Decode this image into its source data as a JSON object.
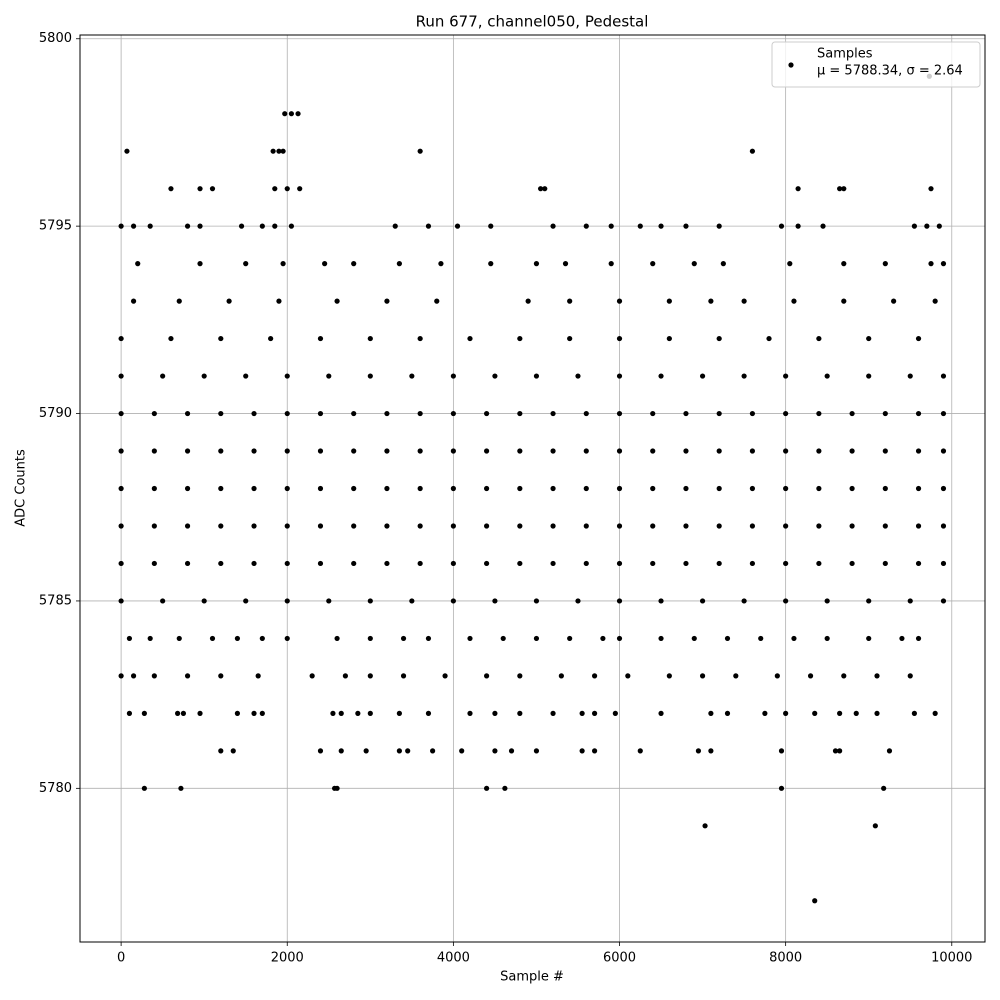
{
  "chart_data": {
    "type": "scatter",
    "title": "Run 677, channel050, Pedestal",
    "x_label": "Sample #",
    "y_label": "ADC Counts",
    "xlim": [
      -495,
      10400
    ],
    "ylim": [
      5775.9,
      5800.1
    ],
    "xticks": [
      0,
      2000,
      4000,
      6000,
      8000,
      10000
    ],
    "yticks": [
      5780,
      5785,
      5790,
      5795,
      5800
    ],
    "grid": true,
    "legend": "upper right",
    "annotation": "μ = 5788.34, σ = 2.64",
    "series": [
      {
        "name": "Samples",
        "color": "#000000",
        "x": [
          0,
          400,
          800,
          1200,
          1600,
          2000,
          2400,
          2800,
          3200,
          3600,
          4000,
          4400,
          4800,
          5200,
          5600,
          6000,
          6400,
          6800,
          7200,
          7600,
          8000,
          8400,
          8800,
          9200,
          9600,
          9900,
          0,
          400,
          800,
          1200,
          1600,
          2000,
          2400,
          2800,
          3200,
          3600,
          4000,
          4400,
          4800,
          5200,
          5600,
          6000,
          6400,
          6800,
          7200,
          7600,
          8000,
          8400,
          8800,
          9200,
          9600,
          9900,
          0,
          400,
          800,
          1200,
          1600,
          2000,
          2400,
          2800,
          3200,
          3600,
          4000,
          4400,
          4800,
          5200,
          5600,
          6000,
          6400,
          6800,
          7200,
          7600,
          8000,
          8400,
          8800,
          9200,
          9600,
          9900,
          0,
          400,
          800,
          1200,
          1600,
          2000,
          2400,
          2800,
          3200,
          3600,
          4000,
          4400,
          4800,
          5200,
          5600,
          6000,
          6400,
          6800,
          7200,
          7600,
          8000,
          8400,
          8800,
          9200,
          9600,
          9900,
          0,
          400,
          800,
          1200,
          1600,
          2000,
          2400,
          2800,
          3200,
          3600,
          4000,
          4400,
          4800,
          5200,
          5600,
          6000,
          6400,
          6800,
          7200,
          7600,
          8000,
          8400,
          8800,
          9200,
          9600,
          9900,
          0,
          500,
          1000,
          1500,
          2000,
          2500,
          3000,
          3500,
          4000,
          4500,
          5000,
          5500,
          6000,
          6500,
          7000,
          7500,
          8000,
          8500,
          9000,
          9500,
          9900,
          0,
          500,
          1000,
          1500,
          2000,
          2500,
          3000,
          3500,
          4000,
          4500,
          5000,
          5500,
          6000,
          6500,
          7000,
          7500,
          8000,
          8500,
          9000,
          9500,
          9900,
          0,
          600,
          1200,
          1800,
          2400,
          3000,
          3600,
          4200,
          4800,
          5400,
          6000,
          6600,
          7200,
          7800,
          8400,
          9000,
          9600,
          150,
          700,
          1300,
          1900,
          2600,
          3200,
          3800,
          4900,
          5400,
          6000,
          6600,
          7100,
          7500,
          8100,
          8700,
          9300,
          9800,
          200,
          950,
          1500,
          1950,
          2450,
          2800,
          3350,
          3850,
          4450,
          5000,
          5350,
          5900,
          6400,
          6900,
          7250,
          8050,
          8700,
          9200,
          9750,
          9900,
          0,
          150,
          350,
          800,
          950,
          1450,
          1700,
          1850,
          2050,
          3300,
          3700,
          4050,
          4450,
          5200,
          5600,
          5900,
          6250,
          6500,
          6800,
          7200,
          7950,
          8150,
          8450,
          9550,
          9700,
          9850,
          600,
          950,
          1100,
          1850,
          2000,
          2150,
          5050,
          5100,
          8150,
          8650,
          8700,
          9750,
          70,
          1830,
          1900,
          1950,
          3600,
          7600,
          1970,
          2050,
          2130,
          9730,
          100,
          350,
          700,
          1100,
          1400,
          1700,
          2000,
          2600,
          3000,
          3400,
          3700,
          4200,
          4600,
          5000,
          5400,
          5800,
          6000,
          6500,
          6900,
          7300,
          7700,
          8100,
          8500,
          9000,
          9400,
          9600,
          0,
          150,
          400,
          800,
          1200,
          1650,
          2300,
          2700,
          3000,
          3400,
          3900,
          4400,
          4800,
          5300,
          5700,
          6100,
          6600,
          7000,
          7400,
          7900,
          8300,
          8700,
          9100,
          9500,
          100,
          280,
          680,
          750,
          950,
          1400,
          1600,
          1700,
          2550,
          2650,
          2850,
          3000,
          3350,
          3700,
          4200,
          4500,
          4800,
          5200,
          5550,
          5700,
          5950,
          6500,
          7100,
          7300,
          7750,
          8000,
          8350,
          8650,
          8850,
          9100,
          9550,
          9800,
          1200,
          1350,
          2400,
          2650,
          2950,
          3350,
          3450,
          3750,
          4100,
          4500,
          4700,
          5000,
          5550,
          5700,
          6250,
          6950,
          7100,
          7950,
          8600,
          8650,
          9250,
          280,
          720,
          2570,
          2600,
          4400,
          4620,
          7950,
          9180,
          7030,
          9080,
          8350
        ],
        "values": [
          5790,
          5790,
          5790,
          5790,
          5790,
          5790,
          5790,
          5790,
          5790,
          5790,
          5790,
          5790,
          5790,
          5790,
          5790,
          5790,
          5790,
          5790,
          5790,
          5790,
          5790,
          5790,
          5790,
          5790,
          5790,
          5790,
          5789,
          5789,
          5789,
          5789,
          5789,
          5789,
          5789,
          5789,
          5789,
          5789,
          5789,
          5789,
          5789,
          5789,
          5789,
          5789,
          5789,
          5789,
          5789,
          5789,
          5789,
          5789,
          5789,
          5789,
          5789,
          5789,
          5788,
          5788,
          5788,
          5788,
          5788,
          5788,
          5788,
          5788,
          5788,
          5788,
          5788,
          5788,
          5788,
          5788,
          5788,
          5788,
          5788,
          5788,
          5788,
          5788,
          5788,
          5788,
          5788,
          5788,
          5788,
          5788,
          5787,
          5787,
          5787,
          5787,
          5787,
          5787,
          5787,
          5787,
          5787,
          5787,
          5787,
          5787,
          5787,
          5787,
          5787,
          5787,
          5787,
          5787,
          5787,
          5787,
          5787,
          5787,
          5787,
          5787,
          5787,
          5787,
          5786,
          5786,
          5786,
          5786,
          5786,
          5786,
          5786,
          5786,
          5786,
          5786,
          5786,
          5786,
          5786,
          5786,
          5786,
          5786,
          5786,
          5786,
          5786,
          5786,
          5786,
          5786,
          5786,
          5786,
          5786,
          5786,
          5785,
          5785,
          5785,
          5785,
          5785,
          5785,
          5785,
          5785,
          5785,
          5785,
          5785,
          5785,
          5785,
          5785,
          5785,
          5785,
          5785,
          5785,
          5785,
          5785,
          5785,
          5791,
          5791,
          5791,
          5791,
          5791,
          5791,
          5791,
          5791,
          5791,
          5791,
          5791,
          5791,
          5791,
          5791,
          5791,
          5791,
          5791,
          5791,
          5791,
          5791,
          5791,
          5792,
          5792,
          5792,
          5792,
          5792,
          5792,
          5792,
          5792,
          5792,
          5792,
          5792,
          5792,
          5792,
          5792,
          5792,
          5792,
          5792,
          5793,
          5793,
          5793,
          5793,
          5793,
          5793,
          5793,
          5793,
          5793,
          5793,
          5793,
          5793,
          5793,
          5793,
          5793,
          5793,
          5793,
          5794,
          5794,
          5794,
          5794,
          5794,
          5794,
          5794,
          5794,
          5794,
          5794,
          5794,
          5794,
          5794,
          5794,
          5794,
          5794,
          5794,
          5794,
          5794,
          5794,
          5795,
          5795,
          5795,
          5795,
          5795,
          5795,
          5795,
          5795,
          5795,
          5795,
          5795,
          5795,
          5795,
          5795,
          5795,
          5795,
          5795,
          5795,
          5795,
          5795,
          5795,
          5795,
          5795,
          5795,
          5795,
          5795,
          5796,
          5796,
          5796,
          5796,
          5796,
          5796,
          5796,
          5796,
          5796,
          5796,
          5796,
          5796,
          5797,
          5797,
          5797,
          5797,
          5797,
          5797,
          5798,
          5798,
          5798,
          5799,
          5784,
          5784,
          5784,
          5784,
          5784,
          5784,
          5784,
          5784,
          5784,
          5784,
          5784,
          5784,
          5784,
          5784,
          5784,
          5784,
          5784,
          5784,
          5784,
          5784,
          5784,
          5784,
          5784,
          5784,
          5784,
          5784,
          5783,
          5783,
          5783,
          5783,
          5783,
          5783,
          5783,
          5783,
          5783,
          5783,
          5783,
          5783,
          5783,
          5783,
          5783,
          5783,
          5783,
          5783,
          5783,
          5783,
          5783,
          5783,
          5783,
          5783,
          5782,
          5782,
          5782,
          5782,
          5782,
          5782,
          5782,
          5782,
          5782,
          5782,
          5782,
          5782,
          5782,
          5782,
          5782,
          5782,
          5782,
          5782,
          5782,
          5782,
          5782,
          5782,
          5782,
          5782,
          5782,
          5782,
          5782,
          5782,
          5782,
          5782,
          5782,
          5782,
          5781,
          5781,
          5781,
          5781,
          5781,
          5781,
          5781,
          5781,
          5781,
          5781,
          5781,
          5781,
          5781,
          5781,
          5781,
          5781,
          5781,
          5781,
          5781,
          5781,
          5781,
          5780,
          5780,
          5780,
          5780,
          5780,
          5780,
          5780,
          5780,
          5779,
          5779,
          5777
        ]
      }
    ]
  }
}
